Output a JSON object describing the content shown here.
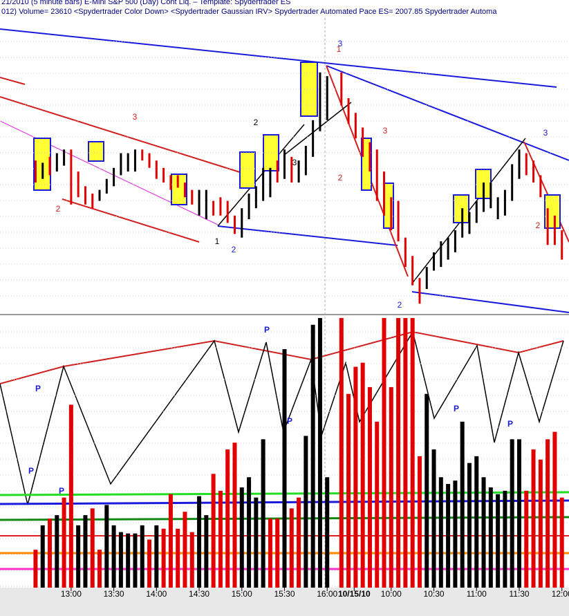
{
  "header": {
    "line1": "21/2010  (5 minute bars)    E-Mini S&P 500 (Day) Cont Liq.   –   Template: Spydertrader ES",
    "line2": "012)  Volume= 23610  <Spydertrader Color Down>  <Spydertrader Gaussian IRV>  Spydertrader Automated Pace ES= 2007.85  Spydertrader Automa"
  },
  "chart_data": [
    {
      "type": "price-bars",
      "x": [
        0,
        1,
        2,
        3,
        4,
        5,
        6,
        7,
        8,
        9,
        10,
        11,
        12,
        13,
        14,
        15,
        16,
        17,
        18,
        19,
        20,
        21,
        22,
        23,
        24,
        25,
        26,
        27,
        28,
        29,
        30,
        31,
        32,
        33,
        34,
        35,
        36,
        37,
        38,
        39,
        40,
        41,
        43,
        44,
        45,
        46,
        47,
        48,
        49,
        50,
        51,
        52,
        53,
        54,
        55,
        56,
        57,
        58,
        59,
        60,
        61,
        62,
        63,
        64,
        65,
        66,
        67,
        68,
        69,
        70,
        71,
        72,
        73,
        74
      ],
      "high": [
        237,
        234,
        242,
        247,
        252,
        252,
        222,
        202,
        192,
        197,
        212,
        227,
        247,
        247,
        252,
        252,
        247,
        237,
        227,
        217,
        217,
        207,
        197,
        197,
        197,
        182,
        187,
        182,
        162,
        172,
        192,
        202,
        227,
        227,
        237,
        252,
        242,
        237,
        257,
        292,
        357,
        352,
        357,
        322,
        302,
        282,
        262,
        252,
        222,
        187,
        182,
        132,
        107,
        77,
        92,
        112,
        127,
        132,
        142,
        172,
        167,
        182,
        207,
        207,
        187,
        197,
        232,
        252,
        247,
        237,
        217,
        172,
        162,
        142
      ],
      "low": [
        207,
        212,
        217,
        222,
        230,
        177,
        187,
        177,
        172,
        182,
        192,
        202,
        217,
        222,
        222,
        237,
        227,
        212,
        207,
        197,
        200,
        187,
        177,
        162,
        157,
        162,
        162,
        152,
        137,
        132,
        157,
        172,
        182,
        187,
        207,
        212,
        207,
        207,
        217,
        242,
        277,
        292,
        312,
        287,
        267,
        242,
        222,
        182,
        162,
        142,
        127,
        92,
        67,
        42,
        62,
        87,
        92,
        102,
        112,
        132,
        137,
        152,
        167,
        172,
        157,
        162,
        182,
        212,
        217,
        207,
        187,
        122,
        122,
        102
      ],
      "colors": [
        "#e00000",
        "#000000",
        "#e00000",
        "#000000",
        "#000000",
        "#e00000",
        "#e00000",
        "#e00000",
        "#e00000",
        "#000000",
        "#000000",
        "#000000",
        "#000000",
        "#000000",
        "#000000",
        "#e00000",
        "#e00000",
        "#e00000",
        "#e00000",
        "#e00000",
        "#e00000",
        "#e00000",
        "#e00000",
        "#000000",
        "#000000",
        "#e00000",
        "#e00000",
        "#e00000",
        "#e00000",
        "#000000",
        "#000000",
        "#000000",
        "#000000",
        "#000000",
        "#e00000",
        "#000000",
        "#e00000",
        "#000000",
        "#000000",
        "#000000",
        "#000000",
        "#000000",
        "#e00000",
        "#e00000",
        "#e00000",
        "#e00000",
        "#e00000",
        "#e00000",
        "#e00000",
        "#e00000",
        "#e00000",
        "#e00000",
        "#e00000",
        "#e00000",
        "#000000",
        "#000000",
        "#000000",
        "#000000",
        "#000000",
        "#000000",
        "#000000",
        "#000000",
        "#000000",
        "#000000",
        "#000000",
        "#000000",
        "#000000",
        "#000000",
        "#e00000",
        "#e00000",
        "#e00000",
        "#e00000",
        "#e00000",
        "#e00000"
      ],
      "xlim": [
        -5,
        75
      ],
      "ylim": [
        30,
        418
      ],
      "annotations": [
        "3",
        "2",
        "1",
        "2",
        "2",
        "3",
        "3",
        "1",
        "3",
        "2",
        "2",
        "3",
        "2"
      ]
    },
    {
      "type": "bar",
      "x": [
        0,
        1,
        2,
        3,
        4,
        5,
        6,
        7,
        8,
        9,
        10,
        11,
        12,
        13,
        14,
        15,
        16,
        17,
        18,
        19,
        20,
        21,
        22,
        23,
        24,
        25,
        26,
        27,
        28,
        29,
        30,
        31,
        32,
        33,
        34,
        35,
        36,
        37,
        38,
        39,
        40,
        41,
        43,
        44,
        45,
        46,
        47,
        48,
        49,
        50,
        51,
        52,
        53,
        54,
        55,
        56,
        57,
        58,
        59,
        60,
        61,
        62,
        63,
        64,
        65,
        66,
        67,
        68,
        69,
        70,
        71,
        72,
        73,
        74
      ],
      "values": [
        56,
        92,
        102,
        107,
        133,
        270,
        92,
        107,
        117,
        56,
        122,
        92,
        82,
        80,
        80,
        92,
        71,
        92,
        87,
        138,
        87,
        112,
        82,
        135,
        107,
        168,
        143,
        204,
        214,
        148,
        163,
        133,
        219,
        102,
        102,
        352,
        117,
        133,
        224,
        388,
        398,
        163,
        398,
        286,
        326,
        332,
        296,
        245,
        398,
        296,
        398,
        398,
        398,
        194,
        286,
        204,
        163,
        153,
        158,
        245,
        184,
        194,
        163,
        148,
        138,
        143,
        219,
        219,
        143,
        204,
        189,
        219,
        230,
        133
      ],
      "colors": [
        "#e00000",
        "#000000",
        "#e00000",
        "#000000",
        "#e00000",
        "#e00000",
        "#000000",
        "#000000",
        "#e00000",
        "#e00000",
        "#000000",
        "#000000",
        "#000000",
        "#000000",
        "#000000",
        "#000000",
        "#e00000",
        "#000000",
        "#e00000",
        "#e00000",
        "#e00000",
        "#e00000",
        "#e00000",
        "#000000",
        "#000000",
        "#e00000",
        "#e00000",
        "#e00000",
        "#e00000",
        "#000000",
        "#000000",
        "#000000",
        "#000000",
        "#e00000",
        "#e00000",
        "#000000",
        "#e00000",
        "#e00000",
        "#000000",
        "#000000",
        "#000000",
        "#000000",
        "#e00000",
        "#e00000",
        "#e00000",
        "#e00000",
        "#e00000",
        "#e00000",
        "#e00000",
        "#e00000",
        "#e00000",
        "#e00000",
        "#e00000",
        "#e00000",
        "#000000",
        "#000000",
        "#000000",
        "#000000",
        "#000000",
        "#000000",
        "#000000",
        "#000000",
        "#000000",
        "#000000",
        "#000000",
        "#000000",
        "#000000",
        "#000000",
        "#e00000",
        "#e00000",
        "#e00000",
        "#e00000",
        "#e00000",
        "#e00000"
      ],
      "xlim": [
        -5,
        75
      ],
      "ylim": [
        0,
        400
      ],
      "xticks": [
        {
          "value": 5,
          "label": "13:00"
        },
        {
          "value": 11,
          "label": "13:30"
        },
        {
          "value": 17,
          "label": "14:00"
        },
        {
          "value": 23,
          "label": "14:30"
        },
        {
          "value": 29,
          "label": "15:00"
        },
        {
          "value": 35,
          "label": "15:30"
        },
        {
          "value": 41,
          "label": "16:00"
        },
        {
          "value": 44.8,
          "label": "10/15/10"
        },
        {
          "value": 50,
          "label": "10:00"
        },
        {
          "value": 56,
          "label": "10:30"
        },
        {
          "value": 62,
          "label": "11:00"
        },
        {
          "value": 68,
          "label": "11:30"
        },
        {
          "value": 74,
          "label": "12:00"
        }
      ],
      "annotations": [
        "P",
        "P",
        "P",
        "P",
        "P",
        "P",
        "P"
      ]
    }
  ]
}
